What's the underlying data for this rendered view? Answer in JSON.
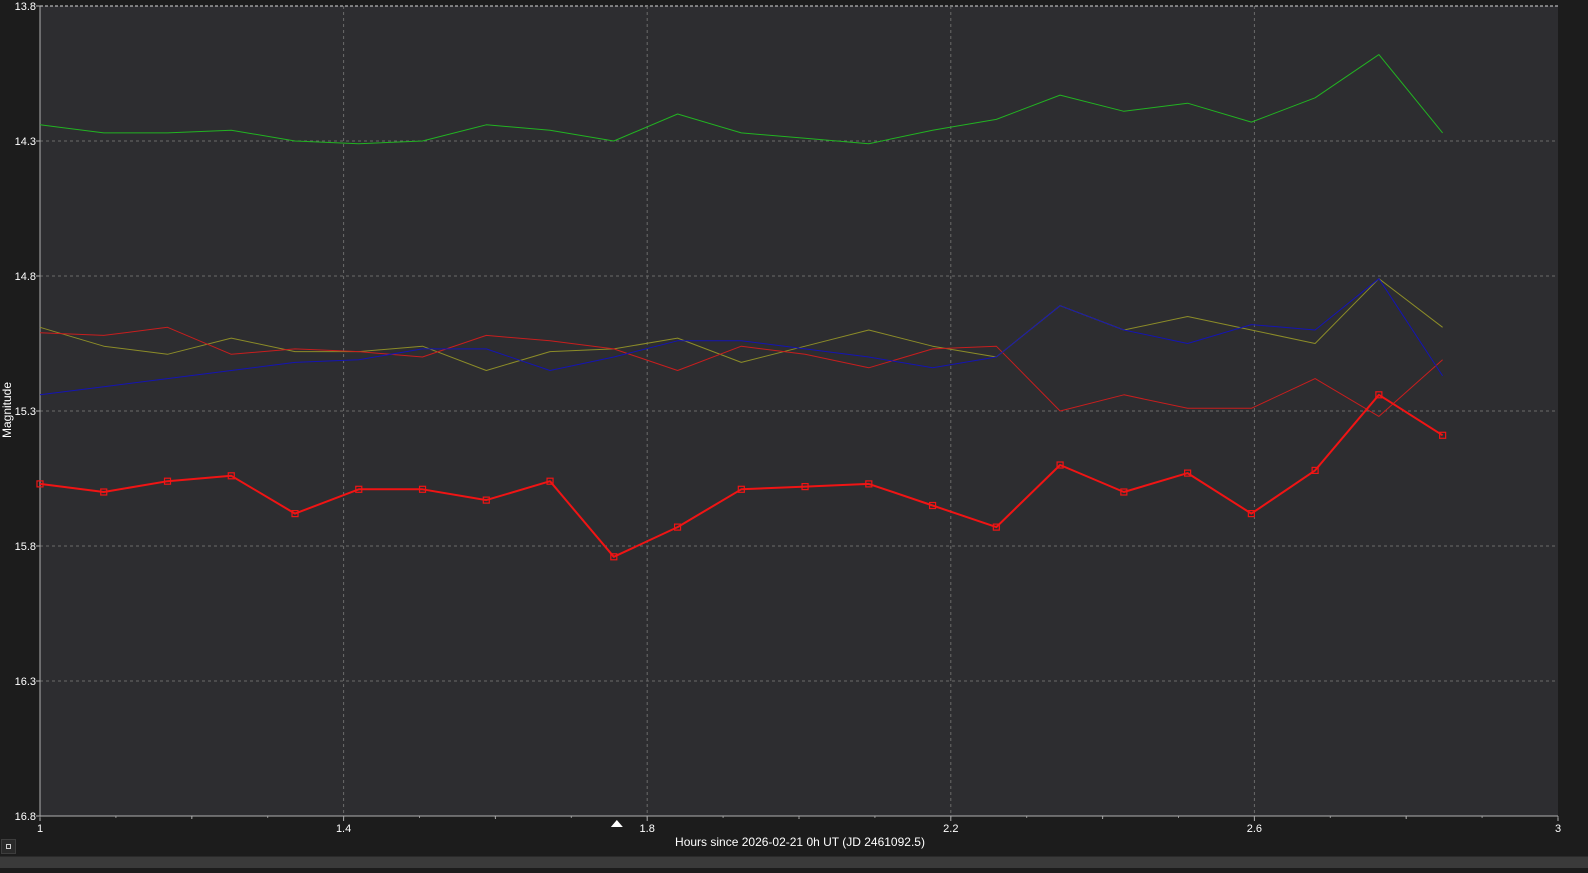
{
  "colors": {
    "background": "#1c1c1c",
    "plot_area": "#2d2d30",
    "grid": "#6a6a6a",
    "axis_text": "#ffffff",
    "green": "#22b322",
    "blue": "#1414b4",
    "olive": "#8c8c28",
    "thin_red": "#c81e1e",
    "bold_red": "#f01414"
  },
  "chart_data": {
    "type": "line",
    "xlabel": "Hours since 2026-02-21 0h UT (JD 2461092.5)",
    "ylabel": "Magnitude",
    "xlim": [
      1,
      3
    ],
    "ylim": [
      13.8,
      16.8
    ],
    "y_inverted": true,
    "grid": true,
    "x_ticks": [
      "1",
      "1.4",
      "1.8",
      "2.2",
      "2.6",
      "3"
    ],
    "y_ticks": [
      "13.8",
      "14.3",
      "14.8",
      "15.3",
      "15.8",
      "16.3",
      "16.8"
    ],
    "marker_x": 1.76,
    "x": [
      1.0,
      1.084,
      1.168,
      1.252,
      1.336,
      1.42,
      1.504,
      1.588,
      1.672,
      1.756,
      1.84,
      1.924,
      2.008,
      2.092,
      2.176,
      2.26,
      2.344,
      2.428,
      2.512,
      2.596,
      2.68,
      2.764,
      2.848
    ],
    "series": [
      {
        "color": "green",
        "style": "thin",
        "values": [
          14.24,
          14.27,
          14.27,
          14.26,
          14.3,
          14.31,
          14.3,
          14.24,
          14.26,
          14.3,
          14.2,
          14.27,
          14.29,
          14.31,
          14.26,
          14.22,
          14.13,
          14.19,
          14.16,
          14.23,
          14.14,
          13.98,
          14.27
        ]
      },
      {
        "color": "olive",
        "style": "thin",
        "values": [
          14.99,
          15.06,
          15.09,
          15.03,
          15.08,
          15.08,
          15.06,
          15.15,
          15.08,
          15.07,
          15.03,
          15.12,
          15.06,
          15.0,
          15.06,
          15.1,
          14.91,
          15.0,
          14.95,
          15.0,
          15.05,
          14.81,
          14.99
        ]
      },
      {
        "color": "thin_red",
        "style": "thin",
        "values": [
          15.01,
          15.02,
          14.99,
          15.09,
          15.07,
          15.08,
          15.1,
          15.02,
          15.04,
          15.07,
          15.15,
          15.06,
          15.09,
          15.14,
          15.07,
          15.06,
          15.3,
          15.24,
          15.29,
          15.29,
          15.18,
          15.32,
          15.11
        ]
      },
      {
        "color": "blue",
        "style": "thin",
        "values": [
          15.24,
          15.21,
          15.18,
          15.15,
          15.12,
          15.11,
          15.07,
          15.07,
          15.15,
          15.1,
          15.04,
          15.04,
          15.07,
          15.1,
          15.14,
          15.1,
          14.91,
          15.0,
          15.05,
          14.98,
          15.0,
          14.81,
          15.17
        ]
      },
      {
        "color": "bold_red",
        "style": "bold-markers",
        "values": [
          15.57,
          15.6,
          15.56,
          15.54,
          15.68,
          15.59,
          15.59,
          15.63,
          15.56,
          15.84,
          15.73,
          15.59,
          15.58,
          15.57,
          15.65,
          15.73,
          15.5,
          15.6,
          15.53,
          15.68,
          15.52,
          15.24,
          15.39
        ]
      }
    ]
  }
}
